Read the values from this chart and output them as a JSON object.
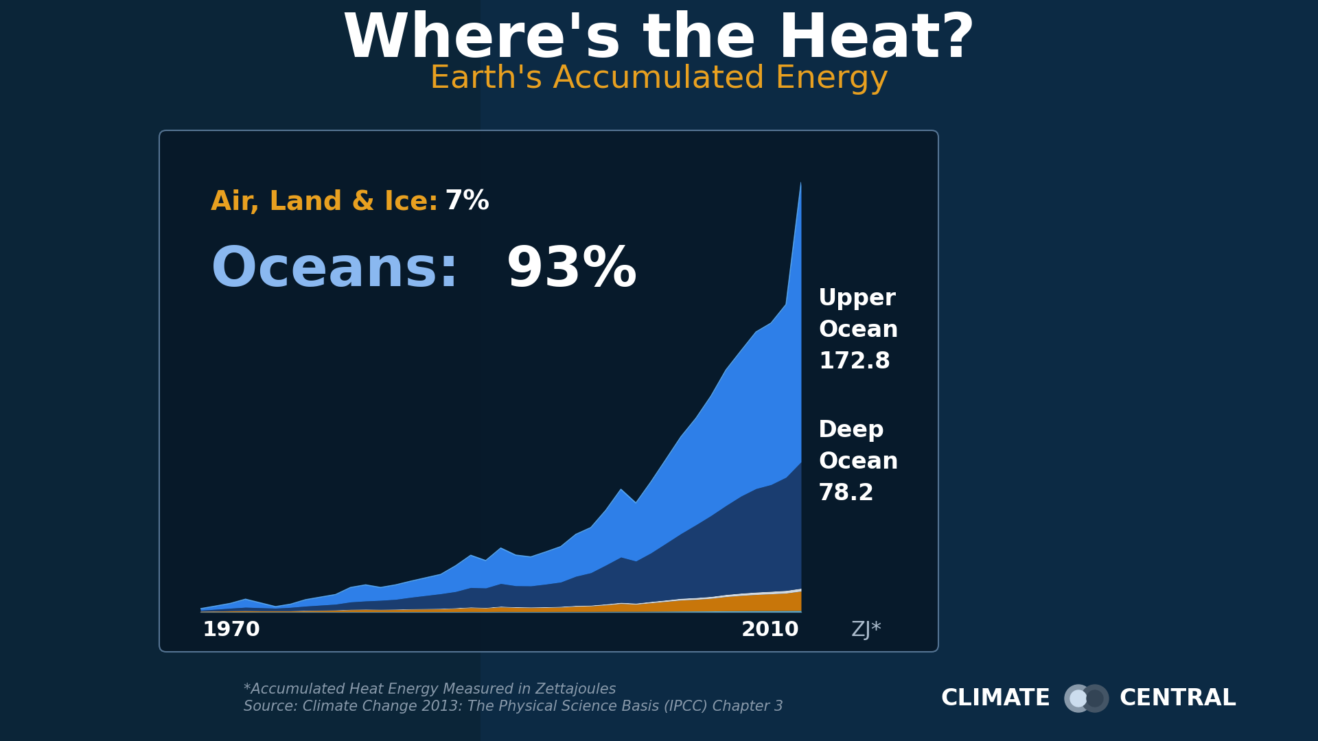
{
  "title": "Where's the Heat?",
  "subtitle": "Earth's Accumulated Energy",
  "title_color": "#FFFFFF",
  "subtitle_color": "#E8A020",
  "bg_color": "#0d2a3f",
  "panel_bg": "#0a1e30",
  "panel_edge": "#5a7a90",
  "label_air_land": "Air, Land & Ice:",
  "label_air_pct": "7%",
  "label_oceans": "Oceans:",
  "label_oceans_pct": "93%",
  "upper_ocean_label": "Upper\nOcean\n172.8",
  "deep_ocean_label": "Deep\nOcean\n78.2",
  "label_unit": "ZJ*",
  "label_1970": "1970",
  "label_2010": "2010",
  "footnote1": "*Accumulated Heat Energy Measured in Zettajoules",
  "footnote2": "Source: Climate Change 2013: The Physical Science Basis (IPCC) Chapter 3",
  "color_upper_ocean": "#2E7FE8",
  "color_upper_ocean_bright": "#3d9fff",
  "color_deep_ocean": "#1a3d70",
  "color_air_land": "#C8760A",
  "color_white_strip": "#d0d8e0",
  "color_light_blue_strip": "#5ab0d8",
  "oceans_text_color": "#8ab8f0",
  "years": [
    1970,
    1971,
    1972,
    1973,
    1974,
    1975,
    1976,
    1977,
    1978,
    1979,
    1980,
    1981,
    1982,
    1983,
    1984,
    1985,
    1986,
    1987,
    1988,
    1989,
    1990,
    1991,
    1992,
    1993,
    1994,
    1995,
    1996,
    1997,
    1998,
    1999,
    2000,
    2001,
    2002,
    2003,
    2004,
    2005,
    2006,
    2007,
    2008,
    2009,
    2010
  ],
  "upper_ocean": [
    1,
    2,
    3,
    5,
    3,
    1,
    2,
    4,
    5,
    6,
    9,
    10,
    8,
    9,
    10,
    11,
    12,
    16,
    20,
    17,
    22,
    19,
    18,
    20,
    22,
    26,
    28,
    34,
    42,
    36,
    44,
    52,
    60,
    66,
    74,
    84,
    90,
    97,
    100,
    107,
    172.8
  ],
  "deep_ocean": [
    0.5,
    1,
    1.5,
    2,
    1.8,
    1.5,
    2,
    2.5,
    3,
    3.5,
    4.5,
    5,
    5.5,
    6,
    7,
    8,
    9,
    10,
    12,
    12,
    14,
    13,
    13,
    14,
    15,
    18,
    20,
    24,
    28,
    26,
    30,
    35,
    40,
    45,
    50,
    55,
    60,
    64,
    66,
    70,
    78.2
  ],
  "air_land_ice": [
    0.3,
    0.4,
    0.5,
    0.6,
    0.5,
    0.5,
    0.5,
    0.7,
    0.8,
    0.9,
    1.2,
    1.3,
    1.2,
    1.3,
    1.5,
    1.6,
    1.7,
    2.0,
    2.4,
    2.2,
    2.8,
    2.5,
    2.4,
    2.5,
    2.7,
    3.2,
    3.4,
    4.0,
    4.8,
    4.4,
    5.2,
    6.0,
    6.8,
    7.2,
    7.8,
    8.8,
    9.5,
    10.0,
    10.4,
    10.8,
    12.0
  ],
  "white_strip": [
    0.15,
    0.15,
    0.2,
    0.2,
    0.2,
    0.2,
    0.2,
    0.25,
    0.25,
    0.25,
    0.3,
    0.3,
    0.3,
    0.3,
    0.35,
    0.35,
    0.35,
    0.4,
    0.45,
    0.4,
    0.5,
    0.45,
    0.45,
    0.45,
    0.5,
    0.55,
    0.55,
    0.65,
    0.75,
    0.7,
    0.85,
    0.95,
    1.1,
    1.15,
    1.2,
    1.35,
    1.45,
    1.55,
    1.6,
    1.7,
    1.8
  ],
  "light_blue_strip": [
    0.1,
    0.1,
    0.12,
    0.12,
    0.12,
    0.12,
    0.12,
    0.15,
    0.15,
    0.15,
    0.18,
    0.18,
    0.18,
    0.18,
    0.2,
    0.2,
    0.2,
    0.22,
    0.25,
    0.22,
    0.28,
    0.25,
    0.25,
    0.25,
    0.28,
    0.3,
    0.3,
    0.35,
    0.4,
    0.38,
    0.45,
    0.5,
    0.55,
    0.58,
    0.62,
    0.68,
    0.72,
    0.78,
    0.8,
    0.85,
    0.9
  ]
}
